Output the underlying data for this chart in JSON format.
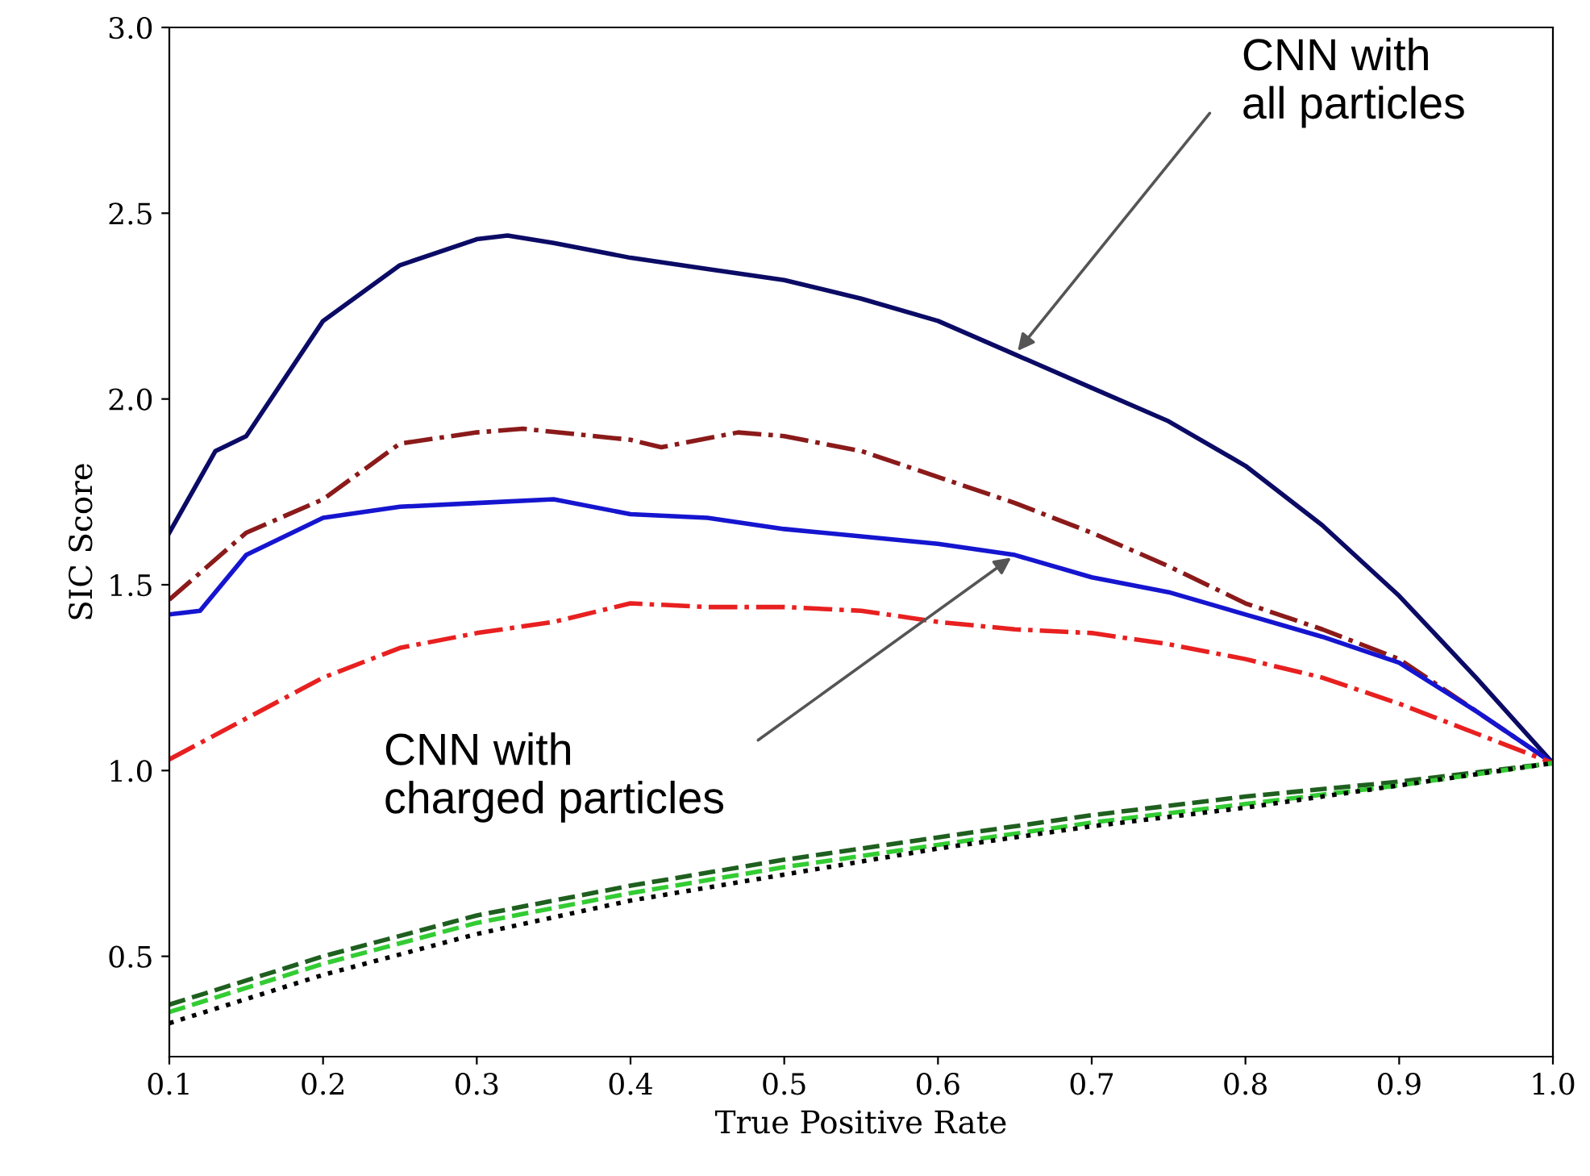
{
  "chart_data": {
    "type": "line",
    "xlabel": "True Positive Rate",
    "ylabel": "SIC Score",
    "xlim": [
      0.1,
      1.0
    ],
    "ylim": [
      0.23,
      3.0
    ],
    "xticks": [
      {
        "value": 0.1,
        "label": "0.1"
      },
      {
        "value": 0.2,
        "label": "0.2"
      },
      {
        "value": 0.3,
        "label": "0.3"
      },
      {
        "value": 0.4,
        "label": "0.4"
      },
      {
        "value": 0.5,
        "label": "0.5"
      },
      {
        "value": 0.6,
        "label": "0.6"
      },
      {
        "value": 0.7,
        "label": "0.7"
      },
      {
        "value": 0.8,
        "label": "0.8"
      },
      {
        "value": 0.9,
        "label": "0.9"
      },
      {
        "value": 1.0,
        "label": "1.0"
      }
    ],
    "yticks": [
      {
        "value": 0.5,
        "label": "0.5"
      },
      {
        "value": 1.0,
        "label": "1.0"
      },
      {
        "value": 1.5,
        "label": "1.5"
      },
      {
        "value": 2.0,
        "label": "2.0"
      },
      {
        "value": 2.5,
        "label": "2.5"
      },
      {
        "value": 3.0,
        "label": "3.0"
      }
    ],
    "grid": false,
    "legend": false,
    "marker": "none",
    "series": [
      {
        "color": "#0b0b66",
        "line_style": "solid",
        "x": [
          0.1,
          0.13,
          0.15,
          0.2,
          0.25,
          0.3,
          0.32,
          0.35,
          0.4,
          0.45,
          0.5,
          0.55,
          0.6,
          0.65,
          0.7,
          0.75,
          0.8,
          0.85,
          0.9,
          0.95,
          1.0
        ],
        "values": [
          1.64,
          1.86,
          1.9,
          2.21,
          2.36,
          2.43,
          2.44,
          2.42,
          2.38,
          2.35,
          2.32,
          2.27,
          2.21,
          2.12,
          2.03,
          1.94,
          1.82,
          1.66,
          1.47,
          1.25,
          1.02
        ]
      },
      {
        "color": "#8b1a1a",
        "line_style": "dashdot",
        "x": [
          0.1,
          0.15,
          0.2,
          0.25,
          0.3,
          0.33,
          0.4,
          0.42,
          0.47,
          0.5,
          0.55,
          0.6,
          0.65,
          0.7,
          0.75,
          0.8,
          0.85,
          0.9,
          0.95,
          1.0
        ],
        "values": [
          1.46,
          1.64,
          1.73,
          1.88,
          1.91,
          1.92,
          1.89,
          1.87,
          1.91,
          1.9,
          1.86,
          1.79,
          1.72,
          1.64,
          1.55,
          1.45,
          1.38,
          1.3,
          1.16,
          1.02
        ]
      },
      {
        "color": "#1515d0",
        "line_style": "solid",
        "x": [
          0.1,
          0.12,
          0.15,
          0.2,
          0.25,
          0.3,
          0.35,
          0.4,
          0.45,
          0.5,
          0.55,
          0.6,
          0.65,
          0.7,
          0.75,
          0.8,
          0.85,
          0.9,
          0.95,
          1.0
        ],
        "values": [
          1.42,
          1.43,
          1.58,
          1.68,
          1.71,
          1.72,
          1.73,
          1.69,
          1.68,
          1.65,
          1.63,
          1.61,
          1.58,
          1.52,
          1.48,
          1.42,
          1.36,
          1.29,
          1.16,
          1.02
        ]
      },
      {
        "color": "#e82020",
        "line_style": "dashdot",
        "x": [
          0.1,
          0.15,
          0.2,
          0.25,
          0.3,
          0.35,
          0.4,
          0.45,
          0.5,
          0.55,
          0.6,
          0.65,
          0.7,
          0.75,
          0.8,
          0.85,
          0.9,
          0.95,
          1.0
        ],
        "values": [
          1.03,
          1.14,
          1.25,
          1.33,
          1.37,
          1.4,
          1.45,
          1.44,
          1.44,
          1.43,
          1.4,
          1.38,
          1.37,
          1.34,
          1.3,
          1.25,
          1.18,
          1.1,
          1.02
        ]
      },
      {
        "color": "#1f5f1f",
        "line_style": "dashed",
        "x": [
          0.1,
          0.2,
          0.3,
          0.4,
          0.5,
          0.6,
          0.7,
          0.8,
          0.9,
          1.0
        ],
        "values": [
          0.37,
          0.5,
          0.61,
          0.69,
          0.76,
          0.82,
          0.88,
          0.93,
          0.97,
          1.02
        ]
      },
      {
        "color": "#33cc33",
        "line_style": "dashed",
        "x": [
          0.1,
          0.2,
          0.3,
          0.4,
          0.5,
          0.6,
          0.7,
          0.8,
          0.9,
          1.0
        ],
        "values": [
          0.35,
          0.48,
          0.59,
          0.67,
          0.74,
          0.8,
          0.86,
          0.91,
          0.96,
          1.02
        ]
      },
      {
        "color": "#000000",
        "line_style": "dotted",
        "x": [
          0.1,
          0.2,
          0.3,
          0.4,
          0.5,
          0.6,
          0.7,
          0.8,
          0.9,
          1.0
        ],
        "values": [
          0.32,
          0.45,
          0.56,
          0.65,
          0.72,
          0.79,
          0.85,
          0.9,
          0.96,
          1.02
        ]
      }
    ],
    "annotations": [
      {
        "text": "CNN with\nall particles",
        "x": 0.65,
        "y": 2.12
      },
      {
        "text": "CNN with\ncharged particles",
        "x": 0.65,
        "y": 1.58
      }
    ]
  }
}
